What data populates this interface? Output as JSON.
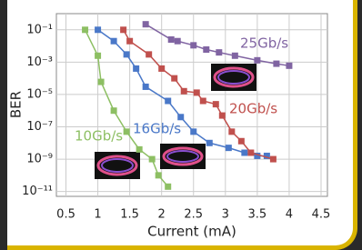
{
  "chart_data": {
    "type": "line",
    "x_label": "Current (mA)",
    "y_label": "BER",
    "log_y": true,
    "xlim": [
      0.35,
      4.6
    ],
    "xticks": [
      0.5,
      1,
      1.5,
      2,
      2.5,
      3,
      3.5,
      4,
      4.5
    ],
    "ylim": [
      5e-12,
      1
    ],
    "yticks": [
      {
        "value": 0.1,
        "label": "10⁻¹"
      },
      {
        "value": 0.001,
        "label": "10⁻³"
      },
      {
        "value": 1e-05,
        "label": "10⁻⁵"
      },
      {
        "value": 1e-07,
        "label": "10⁻⁷"
      },
      {
        "value": 1e-09,
        "label": "10⁻⁹"
      },
      {
        "value": 1e-11,
        "label": "10⁻¹¹"
      }
    ],
    "series": [
      {
        "name": "10Gb/s",
        "color": "#8dbf63",
        "x": [
          0.8,
          1.0,
          1.05,
          1.25,
          1.45,
          1.65,
          1.85,
          1.95,
          2.1
        ],
        "values": [
          0.1,
          0.0025,
          6e-05,
          1e-06,
          5e-08,
          4e-09,
          1e-09,
          1e-10,
          2e-11
        ]
      },
      {
        "name": "16Gb/s",
        "color": "#4a78c8",
        "x": [
          1.0,
          1.25,
          1.45,
          1.6,
          1.75,
          2.1,
          2.3,
          2.5,
          2.75,
          3.05,
          3.3,
          3.5,
          3.65
        ],
        "values": [
          0.1,
          0.02,
          0.003,
          0.0004,
          3e-05,
          4e-06,
          4e-07,
          5e-08,
          1e-08,
          5e-09,
          2.5e-09,
          1.6e-09,
          1.6e-09
        ]
      },
      {
        "name": "20Gb/s",
        "color": "#c0504d",
        "x": [
          1.4,
          1.5,
          1.8,
          2.0,
          2.2,
          2.35,
          2.55,
          2.65,
          2.85,
          2.95,
          3.1,
          3.25,
          3.4,
          3.75
        ],
        "values": [
          0.1,
          0.02,
          0.003,
          0.0004,
          0.0001,
          1.6e-05,
          1.3e-05,
          4e-06,
          2.5e-06,
          5e-07,
          5e-08,
          1.3e-08,
          2.5e-09,
          1e-09
        ]
      },
      {
        "name": "25Gb/s",
        "color": "#8064a2",
        "x": [
          1.75,
          2.15,
          2.25,
          2.5,
          2.7,
          2.9,
          3.15,
          3.5,
          3.8,
          4.0
        ],
        "values": [
          0.22,
          0.025,
          0.02,
          0.011,
          0.006,
          0.004,
          0.0025,
          0.0013,
          0.0008,
          0.0006
        ]
      }
    ]
  }
}
